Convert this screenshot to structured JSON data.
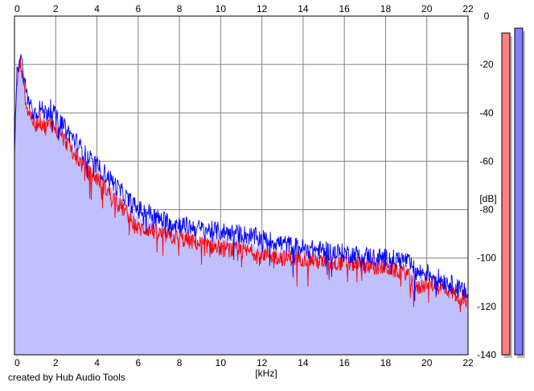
{
  "chart_data": {
    "type": "area",
    "xlabel": "[kHz]",
    "ylabel": "[dB]",
    "xlim": [
      0,
      22
    ],
    "ylim": [
      -140,
      0
    ],
    "x_ticks": [
      "0",
      "2",
      "4",
      "6",
      "8",
      "10",
      "12",
      "14",
      "16",
      "18",
      "20",
      "22"
    ],
    "y_ticks": [
      "0",
      "-20",
      "-40",
      "-60",
      "-80",
      "-100",
      "-120",
      "-140"
    ],
    "grid": true,
    "series": [
      {
        "color": "#ff0000",
        "points": [
          [
            0.0,
            -55
          ],
          [
            0.1,
            -30
          ],
          [
            0.2,
            -22
          ],
          [
            0.3,
            -19
          ],
          [
            0.4,
            -25
          ],
          [
            0.6,
            -38
          ],
          [
            0.8,
            -41
          ],
          [
            1.0,
            -45
          ],
          [
            1.2,
            -43
          ],
          [
            1.5,
            -46
          ],
          [
            1.8,
            -44
          ],
          [
            2.0,
            -47
          ],
          [
            2.3,
            -50
          ],
          [
            2.6,
            -53
          ],
          [
            3.0,
            -58
          ],
          [
            3.5,
            -64
          ],
          [
            4.0,
            -67
          ],
          [
            4.5,
            -72
          ],
          [
            5.0,
            -77
          ],
          [
            5.5,
            -82
          ],
          [
            6.0,
            -88
          ],
          [
            6.5,
            -88
          ],
          [
            7.0,
            -90
          ],
          [
            8.0,
            -92
          ],
          [
            9.0,
            -94
          ],
          [
            10.0,
            -96
          ],
          [
            11.0,
            -97
          ],
          [
            12.0,
            -98
          ],
          [
            13.0,
            -100
          ],
          [
            14.0,
            -100
          ],
          [
            15.0,
            -102
          ],
          [
            16.0,
            -102
          ],
          [
            17.0,
            -103
          ],
          [
            18.0,
            -104
          ],
          [
            19.0,
            -106
          ],
          [
            19.5,
            -113
          ],
          [
            20.0,
            -110
          ],
          [
            21.0,
            -113
          ],
          [
            22.0,
            -118
          ]
        ]
      },
      {
        "color": "#0000ff",
        "points": [
          [
            0.0,
            -58
          ],
          [
            0.1,
            -26
          ],
          [
            0.2,
            -18
          ],
          [
            0.3,
            -16
          ],
          [
            0.4,
            -22
          ],
          [
            0.6,
            -33
          ],
          [
            0.8,
            -37
          ],
          [
            1.0,
            -40
          ],
          [
            1.2,
            -38
          ],
          [
            1.5,
            -40
          ],
          [
            1.8,
            -38
          ],
          [
            2.0,
            -42
          ],
          [
            2.3,
            -45
          ],
          [
            2.6,
            -48
          ],
          [
            3.0,
            -52
          ],
          [
            3.5,
            -58
          ],
          [
            4.0,
            -62
          ],
          [
            4.5,
            -66
          ],
          [
            5.0,
            -71
          ],
          [
            5.5,
            -76
          ],
          [
            6.0,
            -80
          ],
          [
            6.5,
            -81
          ],
          [
            7.0,
            -84
          ],
          [
            8.0,
            -86
          ],
          [
            9.0,
            -88
          ],
          [
            10.0,
            -89
          ],
          [
            11.0,
            -90
          ],
          [
            12.0,
            -92
          ],
          [
            13.0,
            -94
          ],
          [
            14.0,
            -96
          ],
          [
            15.0,
            -97
          ],
          [
            16.0,
            -98
          ],
          [
            17.0,
            -99
          ],
          [
            18.0,
            -100
          ],
          [
            19.0,
            -101
          ],
          [
            19.5,
            -106
          ],
          [
            20.0,
            -106
          ],
          [
            21.0,
            -110
          ],
          [
            22.0,
            -115
          ]
        ]
      }
    ],
    "level_meters": [
      {
        "color": "#ff8080",
        "level_db": -7
      },
      {
        "color": "#8080ff",
        "level_db": -5
      }
    ]
  },
  "footer": {
    "credit": "created by Hub Audio Tools"
  },
  "colors": {
    "plot_background": "#ffffff",
    "grid": "#808080",
    "fill": "#c0c0ff",
    "axis_border": "#000000"
  }
}
